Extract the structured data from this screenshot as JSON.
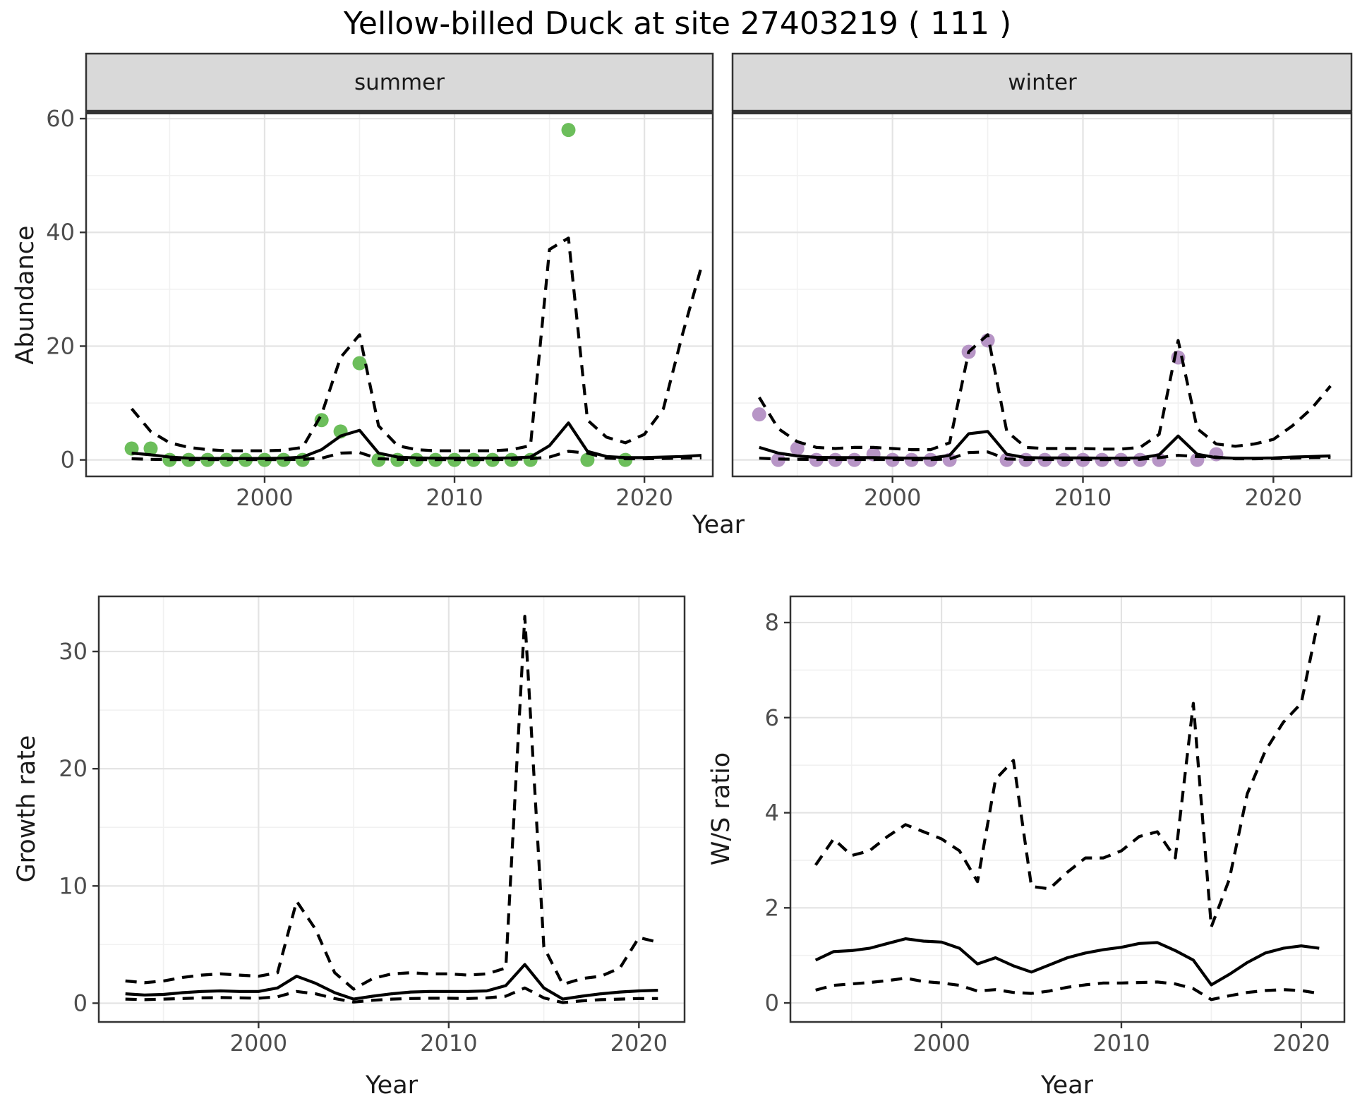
{
  "labels": {
    "title": "Yellow-billed Duck at site 27403219 ( 111 )",
    "y_top": "Abundance",
    "x_top": "Year",
    "y_growth": "Growth rate",
    "x_growth": "Year",
    "y_ws": "W/S ratio",
    "x_ws": "Year",
    "facet_summer": "summer",
    "facet_winter": "winter"
  },
  "colors": {
    "summer_point": "#6cbe5b",
    "winter_point": "#b795c6",
    "line": "#000000",
    "strip_bg": "#d9d9d9",
    "panel_border": "#333333",
    "grid_major": "#e3e3e3",
    "grid_minor": "#f1f1f1",
    "tick_text": "#4d4d4d",
    "tick_mark": "#333333"
  },
  "chart_data": [
    {
      "id": "abundance_summer",
      "type": "line",
      "facet": "summer",
      "title": "Abundance - summer facet",
      "xlabel": "Year",
      "ylabel": "Abundance",
      "point_color_key": "summer_point",
      "xlim": [
        1990.6,
        2023.6
      ],
      "ylim": [
        -2.9,
        61
      ],
      "x_ticks": [
        2000,
        2010,
        2020
      ],
      "x_minor": [
        1995,
        2005,
        2015
      ],
      "y_ticks": [
        0,
        20,
        40,
        60
      ],
      "y_minor": [
        10,
        30,
        50
      ],
      "years": [
        1993,
        1994,
        1995,
        1996,
        1997,
        1998,
        1999,
        2000,
        2001,
        2002,
        2003,
        2004,
        2005,
        2006,
        2007,
        2008,
        2009,
        2010,
        2011,
        2012,
        2013,
        2014,
        2015,
        2016,
        2017,
        2018,
        2019,
        2020,
        2021,
        2022,
        2023
      ],
      "fit": [
        1.2,
        0.9,
        0.5,
        0.3,
        0.25,
        0.25,
        0.25,
        0.25,
        0.3,
        0.5,
        1.8,
        4.2,
        5.2,
        1.2,
        0.5,
        0.35,
        0.3,
        0.3,
        0.3,
        0.3,
        0.35,
        0.5,
        2.5,
        6.5,
        1.5,
        0.6,
        0.4,
        0.4,
        0.5,
        0.6,
        0.8
      ],
      "upper": [
        9,
        5,
        3,
        2.2,
        1.8,
        1.6,
        1.6,
        1.6,
        1.7,
        2.2,
        8,
        18,
        22,
        6,
        2.5,
        1.8,
        1.6,
        1.6,
        1.6,
        1.6,
        1.8,
        2.5,
        37,
        39,
        7,
        4,
        3,
        4.5,
        9,
        22,
        34
      ],
      "lower": [
        0.2,
        0.1,
        0.05,
        0.05,
        0.05,
        0.05,
        0.05,
        0.05,
        0.05,
        0.1,
        0.3,
        1.2,
        1.3,
        0.2,
        0.1,
        0.05,
        0.05,
        0.05,
        0.05,
        0.05,
        0.1,
        0.2,
        0.5,
        1.5,
        1.2,
        0.3,
        0.2,
        0.2,
        0.25,
        0.3,
        0.35
      ],
      "points": {
        "x": [
          1993,
          1994,
          1995,
          1996,
          1997,
          1998,
          1999,
          2000,
          2001,
          2002,
          2003,
          2004,
          2005,
          2006,
          2007,
          2008,
          2009,
          2010,
          2011,
          2012,
          2013,
          2014,
          2016,
          2017,
          2019
        ],
        "y": [
          2,
          2,
          0,
          0,
          0,
          0,
          0,
          0,
          0,
          0,
          7,
          5,
          17,
          0,
          0,
          0,
          0,
          0,
          0,
          0,
          0,
          0,
          58,
          0,
          0
        ]
      }
    },
    {
      "id": "abundance_winter",
      "type": "line",
      "facet": "winter",
      "title": "Abundance - winter facet",
      "xlabel": "Year",
      "ylabel": "Abundance",
      "point_color_key": "winter_point",
      "xlim": [
        1991.6,
        2024.1
      ],
      "ylim": [
        -2.9,
        61
      ],
      "x_ticks": [
        2000,
        2010,
        2020
      ],
      "x_minor": [
        1995,
        2005,
        2015
      ],
      "y_ticks": [
        0,
        20,
        40,
        60
      ],
      "y_minor": [
        10,
        30,
        50
      ],
      "years": [
        1993,
        1994,
        1995,
        1996,
        1997,
        1998,
        1999,
        2000,
        2001,
        2002,
        2003,
        2004,
        2005,
        2006,
        2007,
        2008,
        2009,
        2010,
        2011,
        2012,
        2013,
        2014,
        2015,
        2016,
        2017,
        2018,
        2019,
        2020,
        2021,
        2022,
        2023
      ],
      "fit": [
        2.2,
        1.2,
        0.7,
        0.45,
        0.4,
        0.4,
        0.4,
        0.35,
        0.3,
        0.3,
        0.8,
        4.6,
        5.0,
        1.0,
        0.4,
        0.35,
        0.35,
        0.35,
        0.3,
        0.3,
        0.35,
        0.9,
        4.2,
        1.0,
        0.4,
        0.3,
        0.3,
        0.35,
        0.5,
        0.6,
        0.7
      ],
      "upper": [
        11,
        5.5,
        3.2,
        2.2,
        2.0,
        2.2,
        2.2,
        2.0,
        1.8,
        1.8,
        3.0,
        19,
        22,
        5,
        2.2,
        2.0,
        2.0,
        2.0,
        1.9,
        1.9,
        2.2,
        4.5,
        21,
        5.5,
        2.8,
        2.4,
        2.8,
        3.6,
        6.0,
        9,
        13
      ],
      "lower": [
        0.3,
        0.15,
        0.1,
        0.08,
        0.08,
        0.08,
        0.08,
        0.08,
        0.06,
        0.06,
        0.15,
        1.3,
        1.4,
        0.15,
        0.08,
        0.08,
        0.08,
        0.08,
        0.06,
        0.06,
        0.1,
        0.4,
        0.8,
        0.6,
        0.5,
        0.2,
        0.2,
        0.25,
        0.3,
        0.4,
        0.45
      ],
      "points": {
        "x": [
          1993,
          1994,
          1995,
          1996,
          1997,
          1998,
          1999,
          2000,
          2001,
          2002,
          2003,
          2004,
          2005,
          2006,
          2007,
          2008,
          2009,
          2010,
          2011,
          2012,
          2013,
          2014,
          2015,
          2016,
          2017
        ],
        "y": [
          8,
          0,
          2,
          0,
          0,
          0,
          1,
          0,
          0,
          0,
          0,
          19,
          21,
          0,
          0,
          0,
          0,
          0,
          0,
          0,
          0,
          0,
          18,
          0,
          1
        ]
      }
    },
    {
      "id": "growth",
      "type": "line",
      "title": "Growth rate",
      "xlabel": "Year",
      "ylabel": "Growth rate",
      "xlim": [
        1991.6,
        2022.4
      ],
      "ylim": [
        -1.6,
        34.7
      ],
      "x_ticks": [
        2000,
        2010,
        2020
      ],
      "x_minor": [
        1995,
        2005,
        2015
      ],
      "y_ticks": [
        0,
        10,
        20,
        30
      ],
      "y_minor": [
        5,
        15,
        25
      ],
      "years": [
        1993,
        1994,
        1995,
        1996,
        1997,
        1998,
        1999,
        2000,
        2001,
        2002,
        2003,
        2004,
        2005,
        2006,
        2007,
        2008,
        2009,
        2010,
        2011,
        2012,
        2013,
        2014,
        2015,
        2016,
        2017,
        2018,
        2019,
        2020,
        2021
      ],
      "fit": [
        0.8,
        0.7,
        0.75,
        0.9,
        1.0,
        1.05,
        1.0,
        1.0,
        1.3,
        2.3,
        1.7,
        0.9,
        0.35,
        0.6,
        0.8,
        0.95,
        1.0,
        1.0,
        1.0,
        1.05,
        1.5,
        3.3,
        1.3,
        0.35,
        0.6,
        0.8,
        0.95,
        1.05,
        1.1
      ],
      "upper": [
        1.9,
        1.75,
        1.9,
        2.2,
        2.4,
        2.5,
        2.4,
        2.3,
        2.6,
        8.7,
        6.3,
        2.6,
        1.2,
        2.1,
        2.5,
        2.6,
        2.5,
        2.5,
        2.4,
        2.5,
        3.0,
        33,
        4.8,
        1.6,
        2.1,
        2.3,
        3.0,
        5.6,
        5.2
      ],
      "lower": [
        0.35,
        0.3,
        0.35,
        0.4,
        0.45,
        0.48,
        0.45,
        0.42,
        0.55,
        1.0,
        0.8,
        0.4,
        0.1,
        0.25,
        0.35,
        0.4,
        0.42,
        0.42,
        0.4,
        0.45,
        0.6,
        1.3,
        0.45,
        0.05,
        0.2,
        0.3,
        0.35,
        0.4,
        0.4
      ]
    },
    {
      "id": "ws",
      "type": "line",
      "title": "W/S ratio",
      "xlabel": "Year",
      "ylabel": "W/S ratio",
      "xlim": [
        1991.6,
        2022.4
      ],
      "ylim": [
        -0.4,
        8.55
      ],
      "x_ticks": [
        2000,
        2010,
        2020
      ],
      "x_minor": [
        1995,
        2005,
        2015
      ],
      "y_ticks": [
        0,
        2,
        4,
        6,
        8
      ],
      "y_minor": [
        1,
        3,
        5,
        7
      ],
      "years": [
        1993,
        1994,
        1995,
        1996,
        1997,
        1998,
        1999,
        2000,
        2001,
        2002,
        2003,
        2004,
        2005,
        2006,
        2007,
        2008,
        2009,
        2010,
        2011,
        2012,
        2013,
        2014,
        2015,
        2016,
        2017,
        2018,
        2019,
        2020,
        2021
      ],
      "fit": [
        0.9,
        1.08,
        1.1,
        1.15,
        1.25,
        1.35,
        1.3,
        1.28,
        1.15,
        0.82,
        0.95,
        0.78,
        0.65,
        0.8,
        0.95,
        1.05,
        1.12,
        1.17,
        1.25,
        1.27,
        1.1,
        0.9,
        0.38,
        0.6,
        0.85,
        1.05,
        1.15,
        1.2,
        1.15
      ],
      "upper": [
        2.9,
        3.45,
        3.1,
        3.2,
        3.5,
        3.75,
        3.6,
        3.45,
        3.2,
        2.55,
        4.7,
        5.1,
        2.45,
        2.4,
        2.75,
        3.05,
        3.05,
        3.2,
        3.5,
        3.6,
        3.05,
        6.3,
        1.6,
        2.6,
        4.4,
        5.3,
        5.9,
        6.3,
        8.15
      ],
      "lower": [
        0.27,
        0.37,
        0.4,
        0.43,
        0.47,
        0.52,
        0.45,
        0.42,
        0.37,
        0.25,
        0.28,
        0.22,
        0.2,
        0.25,
        0.33,
        0.38,
        0.42,
        0.42,
        0.43,
        0.44,
        0.4,
        0.3,
        0.07,
        0.15,
        0.22,
        0.26,
        0.28,
        0.26,
        0.2
      ]
    }
  ]
}
